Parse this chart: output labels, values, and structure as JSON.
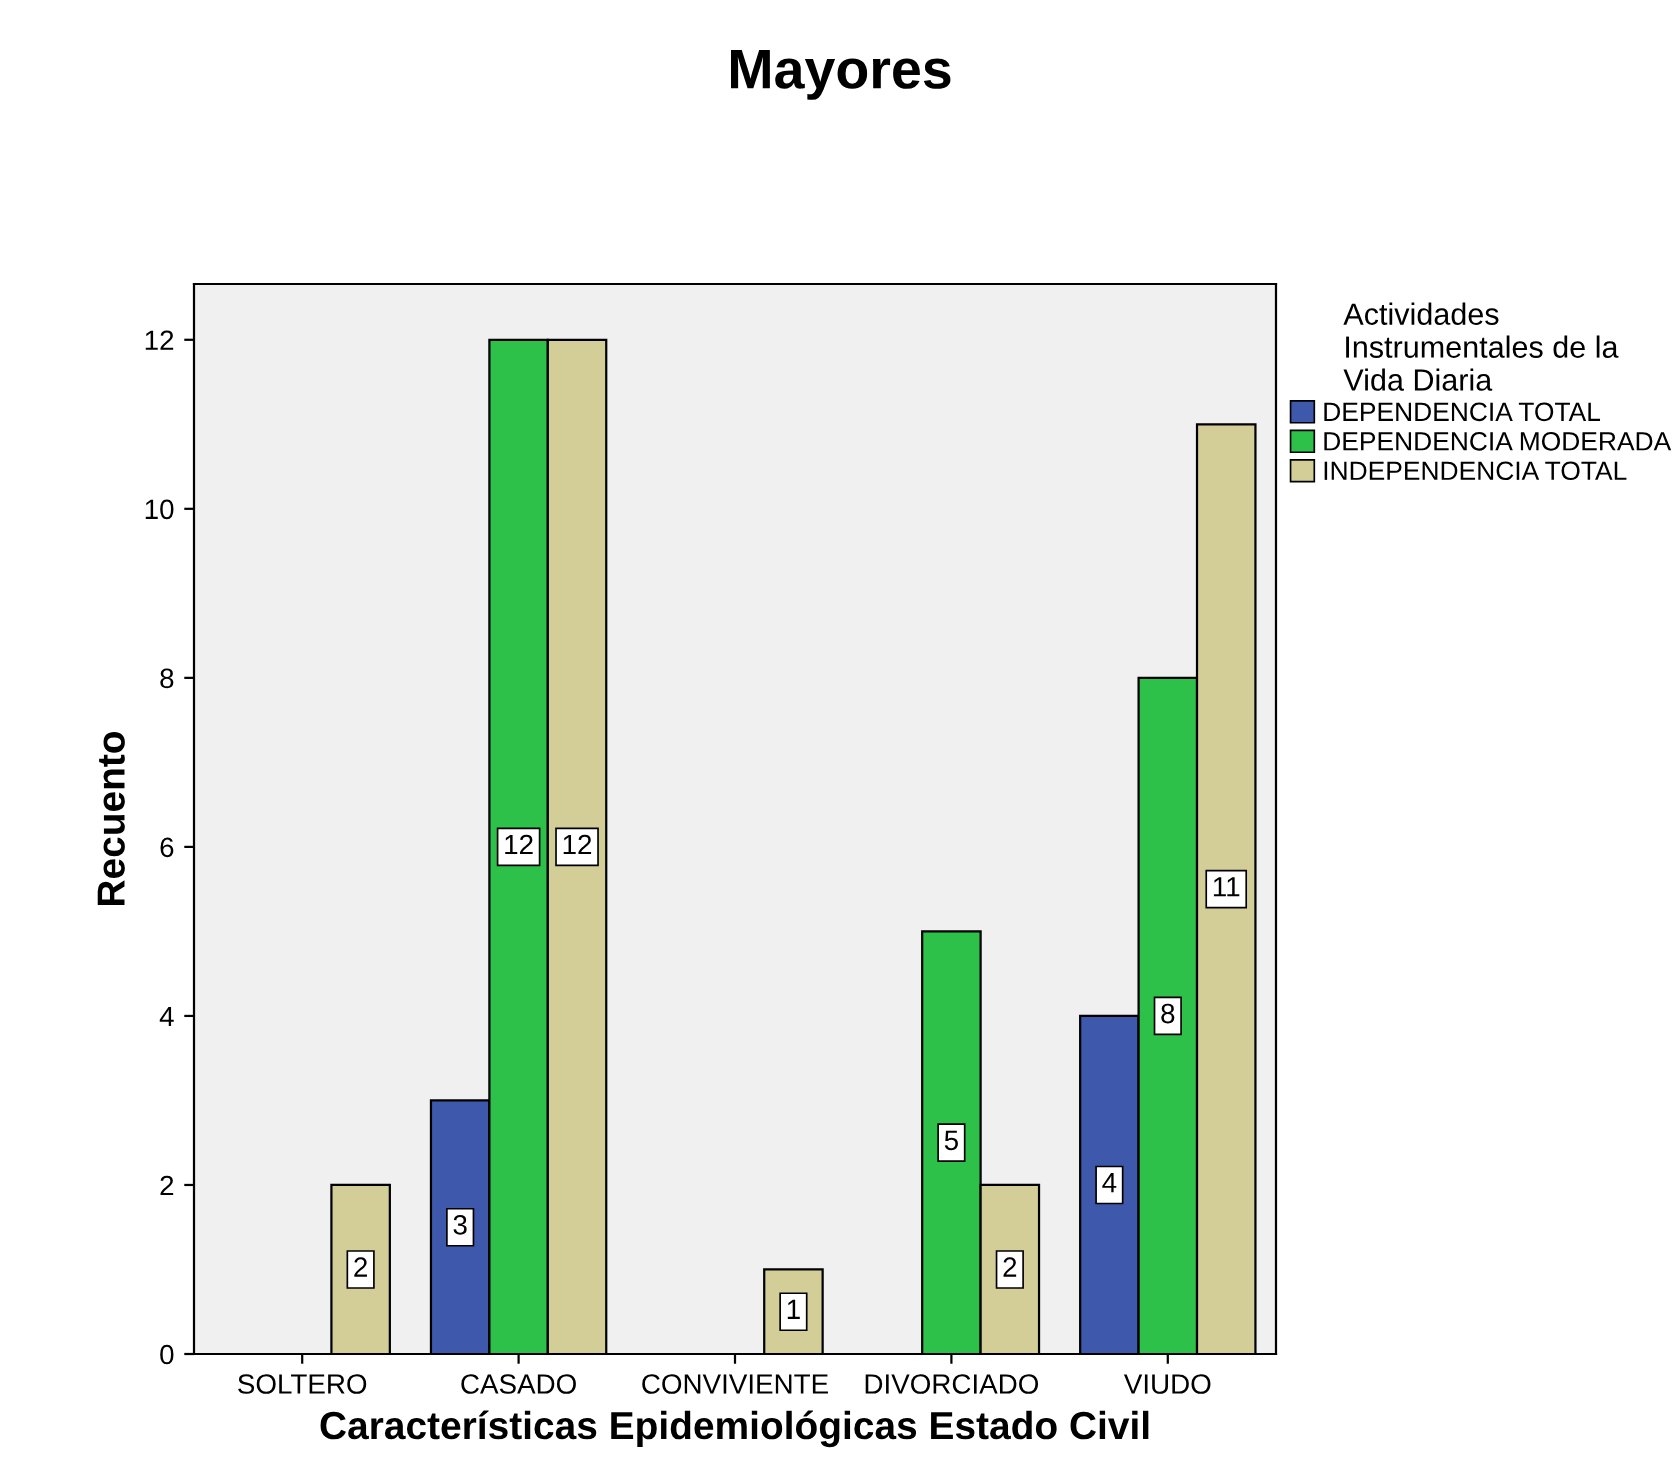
{
  "chart_data": {
    "type": "bar",
    "title": "Mayores",
    "xlabel": "Características Epidemiológicas Estado Civil",
    "ylabel": "Recuento",
    "legend_title": "Actividades\nInstrumentales de la\nVida Diaria",
    "categories": [
      "SOLTERO",
      "CASADO",
      "CONVIVIENTE",
      "DIVORCIADO",
      "VIUDO"
    ],
    "series": [
      {
        "name": "DEPENDENCIA TOTAL",
        "color": "#3e58ac",
        "values": [
          null,
          3,
          null,
          null,
          4
        ]
      },
      {
        "name": "DEPENDENCIA MODERADA",
        "color": "#2ec14a",
        "values": [
          null,
          12,
          null,
          5,
          8
        ]
      },
      {
        "name": "INDEPENDENCIA TOTAL",
        "color": "#d3ce97",
        "values": [
          2,
          12,
          1,
          2,
          11
        ]
      }
    ],
    "ylim": [
      0,
      12.66
    ],
    "yticks": [
      0,
      2,
      4,
      6,
      8,
      10,
      12
    ],
    "grid": false,
    "legend": "top right",
    "data_labels": true
  }
}
